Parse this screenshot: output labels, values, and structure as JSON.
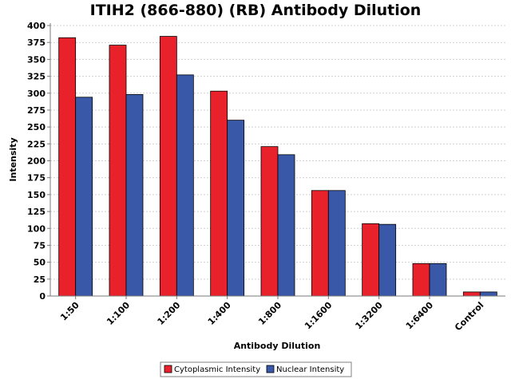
{
  "chart_data": {
    "type": "bar",
    "title": "ITIH2 (866-880) (RB) Antibody Dilution",
    "xlabel": "Antibody Dilution",
    "ylabel": "Intensity",
    "ylim": [
      0,
      400
    ],
    "yticks": [
      0,
      25,
      50,
      75,
      100,
      125,
      150,
      175,
      200,
      225,
      250,
      275,
      300,
      325,
      350,
      375,
      400
    ],
    "grid": true,
    "legend_position": "bottom",
    "categories": [
      "1:50",
      "1:100",
      "1:200",
      "1:400",
      "1:800",
      "1:1600",
      "1:3200",
      "1:6400",
      "Control"
    ],
    "series": [
      {
        "name": "Cytoplasmic Intensity",
        "color": "#e8212b",
        "values": [
          382,
          371,
          384,
          303,
          221,
          156,
          107,
          48,
          6
        ]
      },
      {
        "name": "Nuclear Intensity",
        "color": "#3a58a8",
        "values": [
          294,
          298,
          327,
          260,
          209,
          156,
          106,
          48,
          6
        ]
      }
    ]
  }
}
